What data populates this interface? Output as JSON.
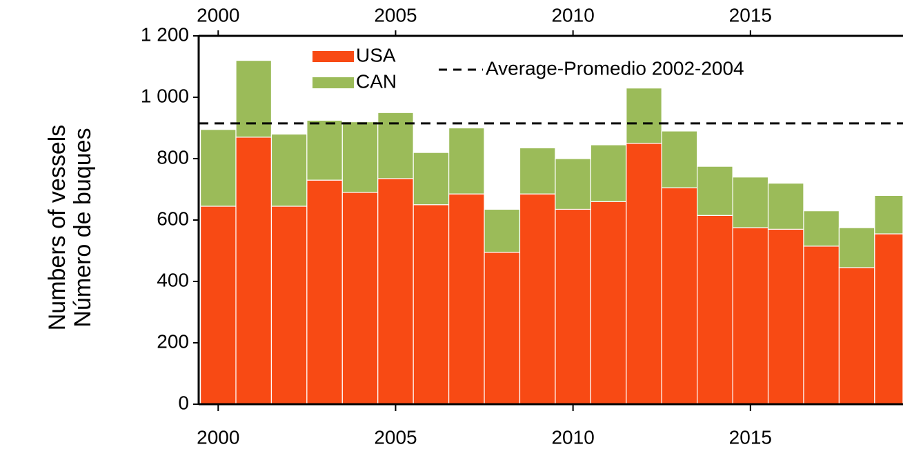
{
  "chart_data": {
    "type": "stacked-bar",
    "y_label_lines": [
      "Numbers of vessels",
      "Número de buques"
    ],
    "x": [
      2000,
      2001,
      2002,
      2003,
      2004,
      2005,
      2006,
      2007,
      2008,
      2009,
      2010,
      2011,
      2012,
      2013,
      2014,
      2015,
      2016,
      2017,
      2018,
      2019
    ],
    "series": [
      {
        "name": "USA",
        "color": "#f84a14",
        "values": [
          645,
          870,
          645,
          730,
          690,
          735,
          650,
          685,
          495,
          685,
          635,
          660,
          850,
          705,
          615,
          575,
          570,
          515,
          445,
          555
        ]
      },
      {
        "name": "CAN",
        "color": "#9bbb59",
        "values": [
          250,
          250,
          235,
          195,
          230,
          215,
          170,
          215,
          140,
          150,
          165,
          185,
          180,
          185,
          160,
          165,
          150,
          115,
          130,
          125
        ]
      }
    ],
    "reference_line": {
      "name": "Average-Promedio 2002-2004",
      "value": 915,
      "color": "#000000"
    },
    "xlim": [
      1999.45,
      2019.3
    ],
    "xticks": [
      2000,
      2005,
      2010,
      2015
    ],
    "ylim": [
      0,
      1200
    ],
    "yticks": [
      0,
      200,
      400,
      600,
      800,
      {
        "value": 1000,
        "label": "1 000"
      },
      {
        "value": 1200,
        "label": "1 200"
      }
    ],
    "grid": false
  }
}
